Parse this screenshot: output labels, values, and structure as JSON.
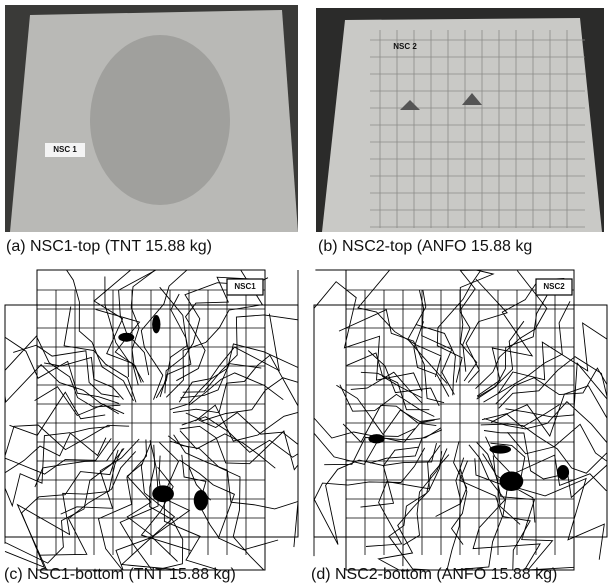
{
  "panels": [
    {
      "caption": "(a) NSC1-top (TNT 15.88 kg)",
      "label": "NSC 1"
    },
    {
      "caption": "(b) NSC2-top (ANFO 15.88 kg",
      "label": "NSC 2"
    },
    {
      "caption": "(c) NSC1-bottom (TNT 15.88 kg)",
      "label": "NSC1"
    },
    {
      "caption": "(d) NSC2-bottom (ANFO 15.88 kg)",
      "label": "NSC2"
    }
  ]
}
